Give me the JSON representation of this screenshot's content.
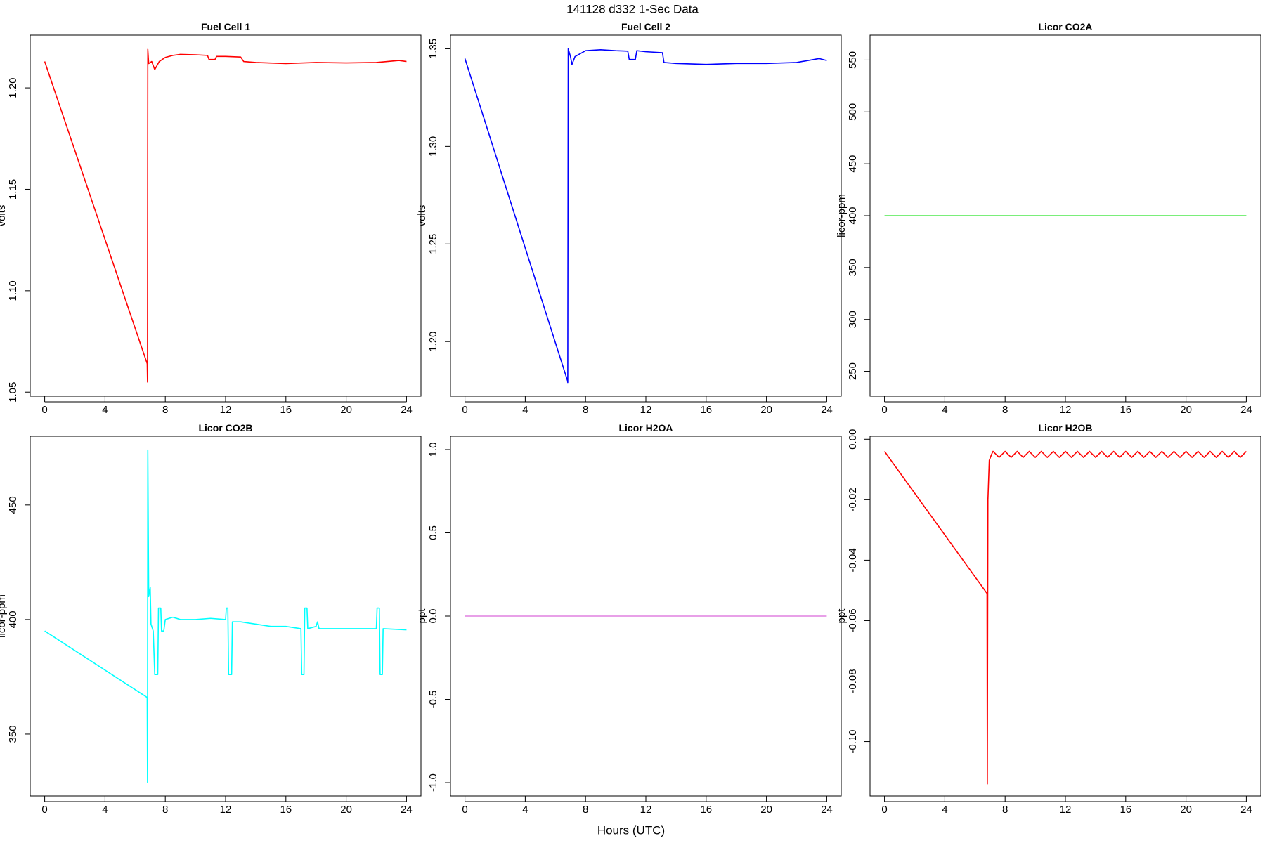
{
  "title": "141128   d332   1-Sec Data",
  "xlabel": "Hours (UTC)",
  "chart_data": [
    {
      "type": "line",
      "title": "Fuel Cell 1",
      "ylabel": "volts",
      "color": "#ff0000",
      "x": [
        0,
        6.8,
        6.82,
        6.84,
        6.9,
        7.1,
        7.3,
        7.6,
        8,
        8.5,
        9,
        10,
        10.8,
        10.9,
        11.3,
        11.4,
        12,
        13,
        13.2,
        14,
        16,
        18,
        20,
        22,
        23.5,
        24
      ],
      "values": [
        1.213,
        1.064,
        1.055,
        1.219,
        1.212,
        1.213,
        1.209,
        1.213,
        1.215,
        1.216,
        1.2165,
        1.2163,
        1.216,
        1.214,
        1.214,
        1.2155,
        1.2155,
        1.2152,
        1.213,
        1.2125,
        1.212,
        1.2125,
        1.2123,
        1.2125,
        1.2135,
        1.213
      ],
      "xlim": [
        -0.96,
        24.96
      ],
      "xticks": [
        0,
        4,
        8,
        12,
        16,
        20,
        24
      ],
      "ylim": [
        1.048,
        1.226
      ],
      "yticks": [
        1.05,
        {
          "value": 1.1,
          "label": "1.10"
        },
        1.15,
        {
          "value": 1.2,
          "label": "1.20"
        }
      ]
    },
    {
      "type": "line",
      "title": "Fuel Cell 2",
      "ylabel": "volts",
      "color": "#0000ff",
      "x": [
        0,
        6.8,
        6.82,
        6.85,
        7,
        7.1,
        7.3,
        8,
        9,
        10,
        10.8,
        10.9,
        11.3,
        11.4,
        12,
        13.1,
        13.2,
        14,
        16,
        18,
        20,
        22,
        23.5,
        24
      ],
      "values": [
        1.345,
        1.18,
        1.179,
        1.35,
        1.346,
        1.342,
        1.346,
        1.349,
        1.3495,
        1.349,
        1.3488,
        1.3445,
        1.3445,
        1.349,
        1.3485,
        1.348,
        1.343,
        1.3425,
        1.342,
        1.3425,
        1.3425,
        1.343,
        1.345,
        1.344
      ],
      "xlim": [
        -0.96,
        24.96
      ],
      "xticks": [
        0,
        4,
        8,
        12,
        16,
        20,
        24
      ],
      "ylim": [
        1.172,
        1.357
      ],
      "yticks": [
        {
          "value": 1.2,
          "label": "1.20"
        },
        1.25,
        {
          "value": 1.3,
          "label": "1.30"
        },
        1.35
      ]
    },
    {
      "type": "line",
      "title": "Licor CO2A",
      "ylabel": "licor-ppm",
      "color": "#4ee84e",
      "x": [
        0,
        24
      ],
      "values": [
        400,
        400
      ],
      "xlim": [
        -0.96,
        24.96
      ],
      "xticks": [
        0,
        4,
        8,
        12,
        16,
        20,
        24
      ],
      "ylim": [
        226,
        574
      ],
      "yticks": [
        250,
        300,
        350,
        400,
        450,
        500,
        550
      ]
    },
    {
      "type": "line",
      "title": "Licor CO2B",
      "ylabel": "licor-ppm",
      "color": "#00ffff",
      "x": [
        0,
        6.8,
        6.82,
        6.84,
        6.9,
        7,
        7.05,
        7.2,
        7.3,
        7.5,
        7.55,
        7.7,
        7.75,
        7.9,
        8,
        8.5,
        9,
        10,
        11,
        12,
        12.05,
        12.15,
        12.2,
        12.4,
        12.45,
        13,
        14,
        15,
        16,
        17,
        17.05,
        17.2,
        17.25,
        17.4,
        17.45,
        18,
        18.1,
        18.2,
        20,
        22,
        22.05,
        22.2,
        22.25,
        22.4,
        22.45,
        24
      ],
      "values": [
        395,
        366,
        329,
        474,
        410,
        414,
        398,
        395,
        376,
        376,
        405,
        405,
        395,
        395,
        400,
        401,
        400,
        400,
        400.5,
        400,
        405,
        405,
        376,
        376,
        399,
        399,
        398,
        397,
        397,
        396,
        376,
        376,
        405,
        405,
        396,
        397,
        399,
        396,
        396,
        396,
        405,
        405,
        376,
        376,
        396,
        395.5
      ],
      "xlim": [
        -0.96,
        24.96
      ],
      "xticks": [
        0,
        4,
        8,
        12,
        16,
        20,
        24
      ],
      "ylim": [
        323,
        480
      ],
      "yticks": [
        350,
        400,
        450
      ]
    },
    {
      "type": "line",
      "title": "Licor H2OA",
      "ylabel": "ppt",
      "color": "#e080e0",
      "x": [
        0,
        24
      ],
      "values": [
        0,
        0
      ],
      "xlim": [
        -0.96,
        24.96
      ],
      "xticks": [
        0,
        4,
        8,
        12,
        16,
        20,
        24
      ],
      "ylim": [
        -1.08,
        1.08
      ],
      "yticks": [
        {
          "value": -1,
          "label": "-1.0"
        },
        -0.5,
        {
          "value": 0,
          "label": "0.0"
        },
        0.5,
        {
          "value": 1,
          "label": "1.0"
        }
      ]
    },
    {
      "type": "line",
      "title": "Licor H2OB",
      "ylabel": "ppt",
      "color": "#ff0000",
      "x": [
        0,
        6.8,
        6.82,
        6.86,
        6.95,
        7.1,
        7.2,
        7.6,
        8,
        8.4,
        8.8,
        9.2,
        9.6,
        10,
        10.4,
        10.8,
        11.2,
        11.6,
        12,
        12.4,
        12.8,
        13.2,
        13.6,
        14,
        14.4,
        14.8,
        15.2,
        15.6,
        16,
        16.4,
        16.8,
        17.2,
        17.6,
        18,
        18.4,
        18.8,
        19.2,
        19.6,
        20,
        20.4,
        20.8,
        21.2,
        21.6,
        22,
        22.4,
        22.8,
        23.2,
        23.6,
        24
      ],
      "values": [
        -0.004,
        -0.051,
        -0.114,
        -0.02,
        -0.007,
        -0.005,
        -0.004,
        -0.006,
        -0.004,
        -0.006,
        -0.004,
        -0.006,
        -0.004,
        -0.006,
        -0.004,
        -0.006,
        -0.004,
        -0.006,
        -0.004,
        -0.006,
        -0.004,
        -0.006,
        -0.004,
        -0.006,
        -0.004,
        -0.006,
        -0.004,
        -0.006,
        -0.004,
        -0.006,
        -0.004,
        -0.006,
        -0.004,
        -0.006,
        -0.004,
        -0.006,
        -0.004,
        -0.006,
        -0.004,
        -0.006,
        -0.004,
        -0.006,
        -0.004,
        -0.006,
        -0.004,
        -0.006,
        -0.004,
        -0.006,
        -0.004
      ],
      "xlim": [
        -0.96,
        24.96
      ],
      "xticks": [
        0,
        4,
        8,
        12,
        16,
        20,
        24
      ],
      "ylim": [
        -0.118,
        0.001
      ],
      "yticks": [
        {
          "value": 0,
          "label": "0.00"
        },
        -0.02,
        -0.04,
        -0.06,
        -0.08,
        {
          "value": -0.1,
          "label": "-0.10"
        }
      ]
    }
  ]
}
